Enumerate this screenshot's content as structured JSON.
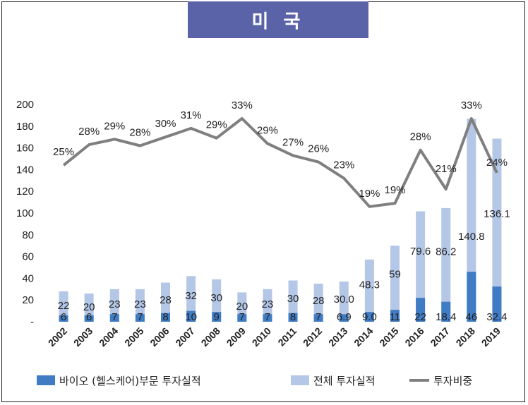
{
  "header": {
    "title": "미 국"
  },
  "chart_data": {
    "type": "bar",
    "categories": [
      "2002",
      "2003",
      "2004",
      "2005",
      "2006",
      "2007",
      "2008",
      "2009",
      "2010",
      "2011",
      "2012",
      "2013",
      "2014",
      "2015",
      "2016",
      "2017",
      "2018",
      "2019"
    ],
    "ylim": [
      0,
      200
    ],
    "yticks": [
      0,
      20,
      40,
      60,
      80,
      100,
      120,
      140,
      160,
      180,
      200
    ],
    "ytick_labels": [
      "-",
      "20",
      "40",
      "60",
      "80",
      "100",
      "120",
      "140",
      "160",
      "180",
      "200"
    ],
    "series": [
      {
        "name": "바이오 (헬스케어)부문 투자실적",
        "type": "bar",
        "color": "#3f7cc4",
        "values": [
          6,
          6,
          7,
          7,
          8,
          10,
          9,
          7,
          7,
          8,
          7,
          6.9,
          9.0,
          11,
          22,
          18.4,
          46,
          32.4
        ],
        "labels": [
          "6",
          "6",
          "7",
          "7",
          "8",
          "10",
          "9",
          "7",
          "7",
          "8",
          "7",
          "6.9",
          "9.0",
          "11",
          "22",
          "18.4",
          "46",
          "32.4"
        ]
      },
      {
        "name": "전체 투자실적",
        "type": "bar",
        "color": "#b4c7e7",
        "values": [
          28,
          26,
          30,
          30,
          36,
          42,
          39,
          27,
          30,
          38,
          35,
          37,
          57.3,
          70,
          101.6,
          104.6,
          186.8,
          168.5
        ],
        "labels": [
          "22",
          "20",
          "23",
          "23",
          "28",
          "32",
          "30",
          "20",
          "23",
          "30",
          "28",
          "30.0",
          "48.3",
          "59",
          "79.6",
          "86.2",
          "140.8",
          "136.1"
        ]
      },
      {
        "name": "투자비중",
        "type": "line",
        "color": "#7f7f7f",
        "values": [
          144,
          163,
          168,
          162,
          170,
          178,
          169,
          187,
          164,
          153,
          147,
          132,
          106,
          109,
          158,
          122,
          187,
          137
        ],
        "labels": [
          "25%",
          "28%",
          "29%",
          "28%",
          "30%",
          "31%",
          "29%",
          "33%",
          "29%",
          "27%",
          "26%",
          "23%",
          "19%",
          "19%",
          "28%",
          "21%",
          "33%",
          "24%"
        ]
      }
    ],
    "grid": false,
    "legend": "bottom"
  }
}
